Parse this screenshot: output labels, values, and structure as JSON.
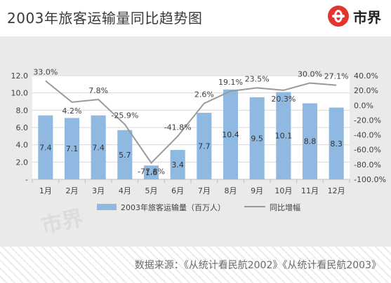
{
  "header": {
    "title": "2003年旅客运输量同比趋势图",
    "logo_text": "市界",
    "logo_icon": "shijie-logo-icon",
    "logo_color": "#e3342f"
  },
  "watermark": "市界",
  "footer": {
    "source": "数据来源：《从统计看民航2002》《从统计看民航2003》"
  },
  "chart_data": {
    "type": "bar+line",
    "categories": [
      "1月",
      "2月",
      "3月",
      "4月",
      "5月",
      "6月",
      "7月",
      "8月",
      "9月",
      "10月",
      "11月",
      "12月"
    ],
    "series": [
      {
        "name": "2003年旅客运输量（百万人）",
        "type": "bar",
        "axis": "left",
        "values": [
          7.4,
          7.1,
          7.4,
          5.7,
          1.6,
          3.4,
          7.7,
          10.4,
          9.5,
          10.1,
          8.8,
          8.3
        ],
        "labels": [
          "7.4",
          "7.1",
          "7.4",
          "5.7",
          "1.6",
          "3.4",
          "7.7",
          "10.4",
          "9.5",
          "10.1",
          "8.8",
          "8.3"
        ],
        "color": "#8fb9e0"
      },
      {
        "name": "同比增幅",
        "type": "line",
        "axis": "right",
        "values": [
          33.0,
          4.2,
          7.8,
          -25.9,
          -77.8,
          -41.8,
          2.6,
          19.1,
          23.5,
          20.3,
          30.0,
          27.1
        ],
        "labels": [
          "33.0%",
          "4.2%",
          "7.8%",
          "-25.9%",
          "-77.8%",
          "-41.8%",
          "2.6%",
          "19.1%",
          "23.5%",
          "20.3%",
          "30.0%",
          "27.1%"
        ],
        "color": "#9a9a9a"
      }
    ],
    "left_axis": {
      "ylim": [
        0,
        12
      ],
      "ticks": [
        0,
        2,
        4,
        6,
        8,
        10,
        12
      ],
      "tick_labels": [
        "-",
        "2.0",
        "4.0",
        "6.0",
        "8.0",
        "10.0",
        "12.0"
      ]
    },
    "right_axis": {
      "ylim": [
        -100,
        40
      ],
      "ticks": [
        -100,
        -80,
        -60,
        -40,
        -20,
        0,
        20,
        40
      ],
      "tick_labels": [
        "-100.0%",
        "-80.0%",
        "-60.0%",
        "-40.0%",
        "-20.0%",
        "0.0%",
        "20.0%",
        "40.0%"
      ]
    },
    "grid": true,
    "legend_position": "bottom"
  }
}
